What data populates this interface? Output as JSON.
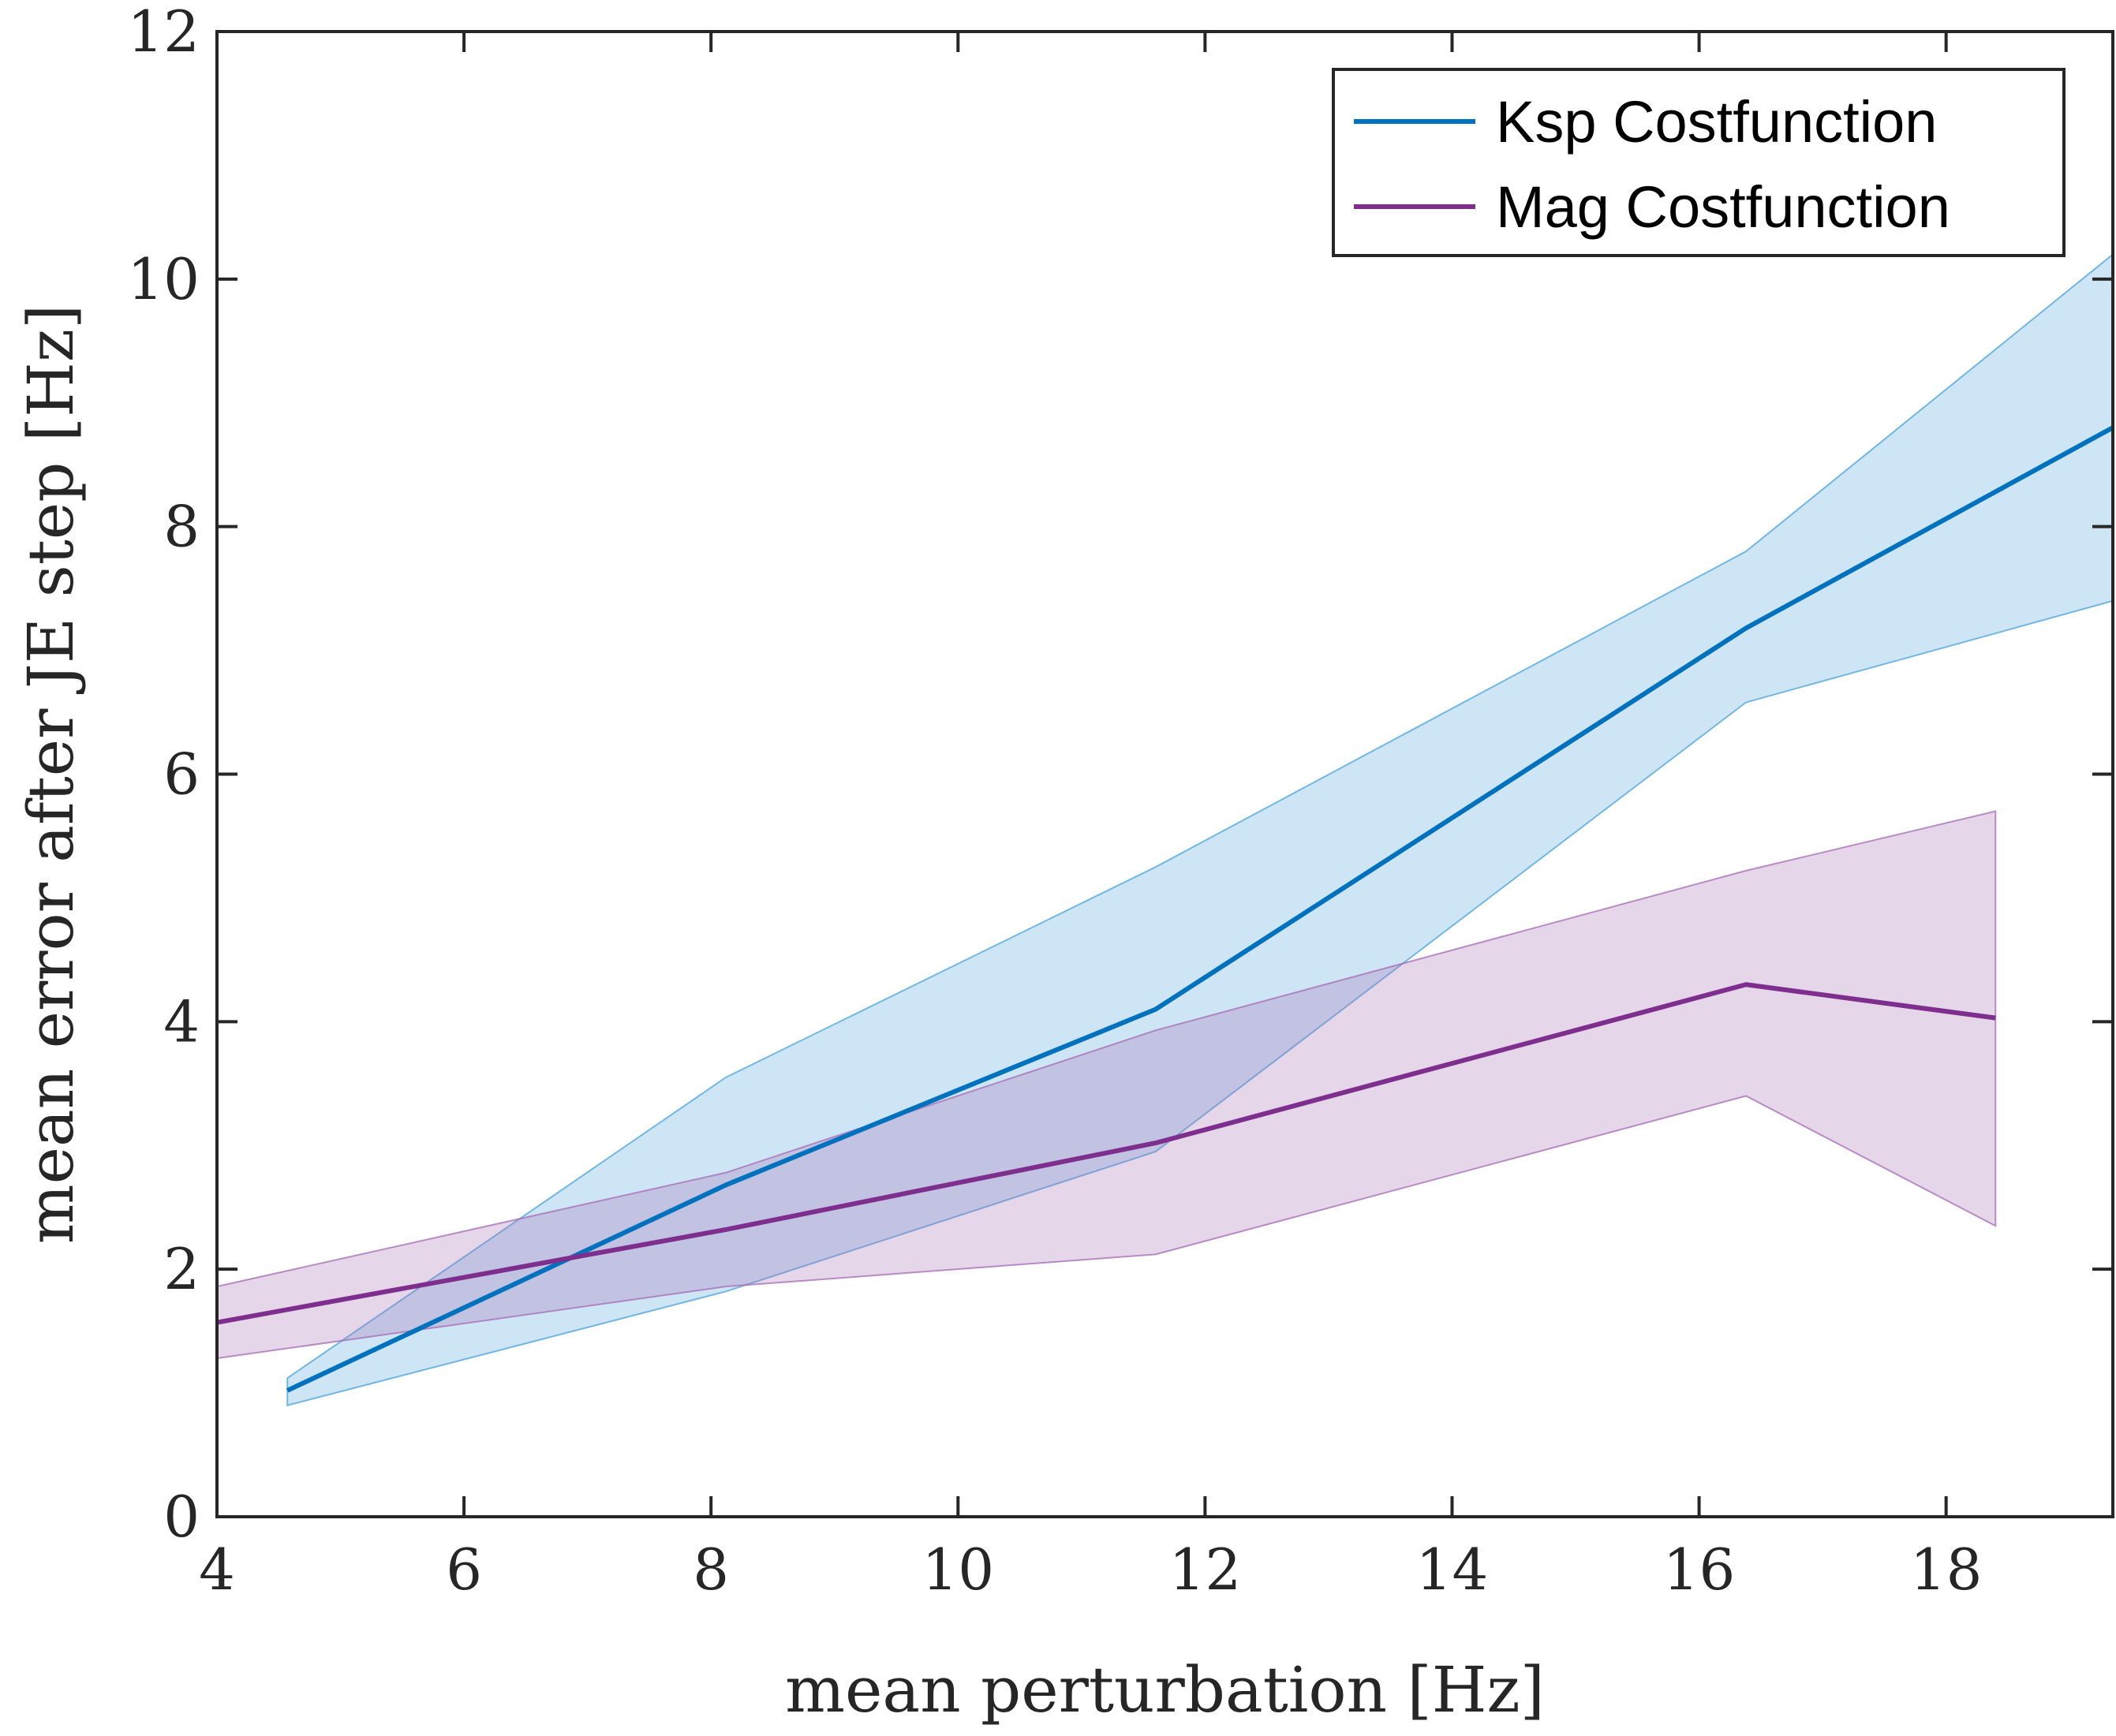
{
  "chart_data": {
    "type": "line",
    "title": "",
    "xlabel": "mean perturbation [Hz]",
    "ylabel": "mean error after JE step [Hz]",
    "xlim": [
      4,
      19.35
    ],
    "ylim": [
      0,
      12
    ],
    "xticks": [
      4,
      6,
      8,
      10,
      12,
      14,
      16,
      18
    ],
    "yticks": [
      0,
      2,
      4,
      6,
      8,
      10,
      12
    ],
    "xtick_labels": [
      "4",
      "6",
      "8",
      "10",
      "12",
      "14",
      "16",
      "18"
    ],
    "ytick_labels": [
      "0",
      "2",
      "4",
      "6",
      "8",
      "10",
      "12"
    ],
    "grid": false,
    "legend_position": "top-right",
    "series": [
      {
        "name": "Ksp Costfunction",
        "color": "#0072BD",
        "band_color": "#4DA3D9",
        "x": [
          4.57,
          8.12,
          11.6,
          16.38,
          19.35
        ],
        "values": [
          1.02,
          2.68,
          4.1,
          7.18,
          8.8
        ],
        "lower": [
          0.9,
          1.82,
          2.95,
          6.58,
          7.4
        ],
        "upper": [
          1.12,
          3.55,
          5.25,
          7.8,
          10.2
        ]
      },
      {
        "name": "Mag Costfunction",
        "color": "#7E2F8E",
        "band_color": "#A66BB5",
        "x": [
          4.0,
          8.12,
          11.6,
          16.38,
          18.4
        ],
        "values": [
          1.57,
          2.32,
          3.02,
          4.3,
          4.03
        ],
        "lower": [
          1.28,
          1.86,
          2.12,
          3.4,
          2.35
        ],
        "upper": [
          1.86,
          2.78,
          3.93,
          5.22,
          5.7
        ]
      }
    ]
  }
}
